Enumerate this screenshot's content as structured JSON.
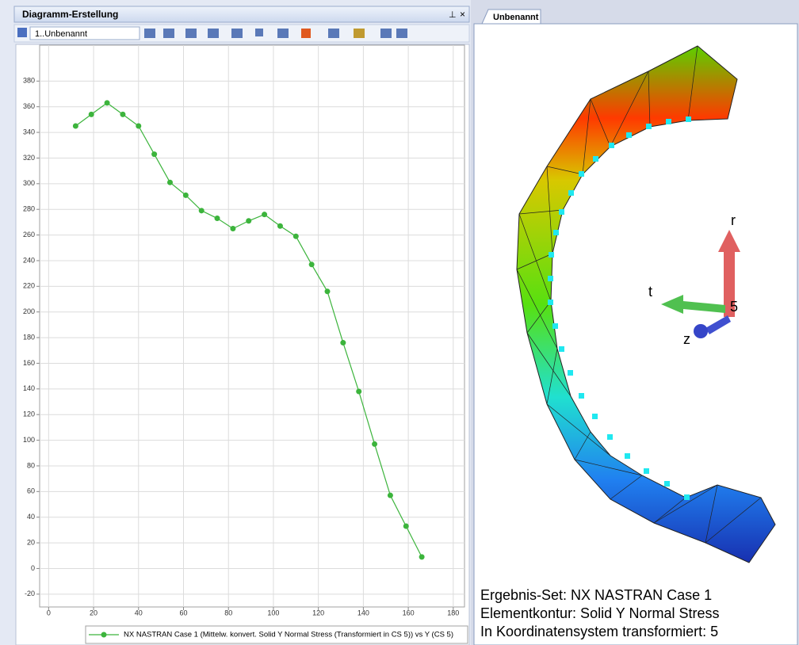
{
  "window": {
    "title": "Diagramm-Erstellung"
  },
  "toolbar": {
    "selection": "1..Unbenannt"
  },
  "chart_data": {
    "type": "line",
    "x": [
      12,
      19,
      26,
      33,
      40,
      47,
      54,
      61,
      68,
      75,
      82,
      89,
      96,
      103,
      110,
      117,
      124,
      131,
      138,
      145,
      152,
      159,
      166
    ],
    "series": [
      {
        "name": "NX NASTRAN Case 1 (Mittelw. konvert. Solid Y Normal Stress (Transformiert in CS 5)) vs Y (CS 5)",
        "color": "#3cb43c",
        "values": [
          345,
          354,
          363,
          354,
          345,
          323,
          301,
          291,
          279,
          273,
          265,
          271,
          276,
          267,
          259,
          237,
          216,
          176,
          138,
          97,
          57,
          33,
          9
        ]
      }
    ],
    "xlim": [
      -4,
      185
    ],
    "ylim": [
      -30,
      408
    ],
    "xticks": [
      0,
      20,
      40,
      60,
      80,
      100,
      120,
      140,
      160,
      180
    ],
    "yticks": [
      -20,
      0,
      20,
      40,
      60,
      80,
      100,
      120,
      140,
      160,
      180,
      200,
      220,
      240,
      260,
      280,
      300,
      320,
      340,
      360,
      380
    ],
    "grid": true
  },
  "viewport": {
    "tab": "Unbenannt",
    "axes": {
      "r": "r",
      "t": "t",
      "z": "z",
      "origin": "5"
    },
    "info": [
      "Ergebnis-Set: NX NASTRAN Case 1",
      "Elementkontur: Solid Y Normal Stress",
      "In Koordinatensystem transformiert: 5"
    ]
  }
}
